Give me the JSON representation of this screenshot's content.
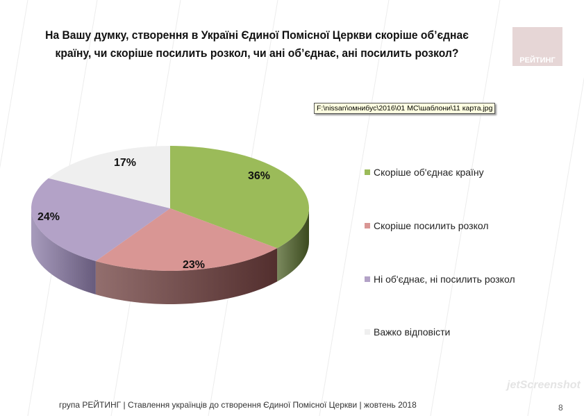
{
  "title": "На Вашу думку, створення в Україні Єдиної Помісної Церкви скоріше об’єднає країну, чи скоріше посилить розкол, чи ані об’єднає, ані посилить розкол?",
  "logo_text": "РЕЙТИНГ",
  "tooltip": "F:\\nissan\\омнибус\\2016\\01 МС\\шаблони\\11 карта.jpg",
  "footer": "група РЕЙТИНГ | Ставлення українців до створення Єдиної Помісної Церкви | жовтень 2018",
  "page_number": "8",
  "watermark": "jetScreenshot",
  "chart_data": {
    "type": "pie",
    "style": "3d",
    "categories": [
      "Скоріше об'єднає країну",
      "Скоріше посилить розкол",
      "Ні об'єднає, ні посилить розкол",
      "Важко відповісти"
    ],
    "values": [
      36,
      23,
      24,
      17
    ],
    "data_labels": [
      "36%",
      "23%",
      "24%",
      "17%"
    ],
    "colors": [
      "#9BBB59",
      "#D99694",
      "#B3A2C7",
      "#EFEFEF"
    ],
    "side_colors": [
      "#4F6228",
      "#6E3E3D",
      "#8A7AA6",
      "#CFCFCF"
    ],
    "legend_position": "right"
  }
}
